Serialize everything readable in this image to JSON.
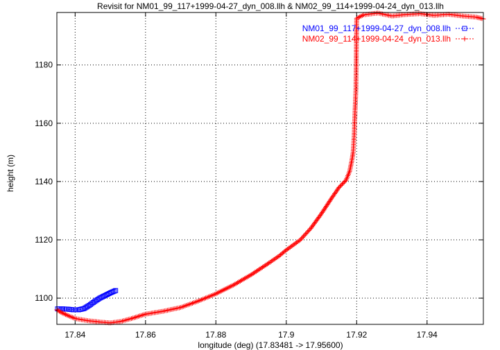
{
  "chart_data": {
    "type": "line",
    "title": "Revisit for NM01_99_117+1999-04-27_dyn_008.llh & NM02_99_114+1999-04-24_dyn_013.llh",
    "xlabel": "longitude (deg) (17.83481 -> 17.95600)",
    "ylabel": "height (m)",
    "xlim": [
      17.83481,
      17.956
    ],
    "ylim": [
      1091,
      1198
    ],
    "xticks": [
      17.84,
      17.86,
      17.88,
      17.9,
      17.92,
      17.94
    ],
    "xtick_labels": [
      "17.84",
      "17.86",
      "17.88",
      "17.9",
      "17.92",
      "17.94"
    ],
    "yticks": [
      1100,
      1120,
      1140,
      1160,
      1180
    ],
    "ytick_labels": [
      "1100",
      "1120",
      "1140",
      "1160",
      "1180"
    ],
    "grid": true,
    "legend_position": "top-right",
    "series": [
      {
        "name": "NM01_99_117+1999-04-27_dyn_008.llh",
        "color": "#0000ff",
        "marker": "square",
        "line": "dashed",
        "x": [
          17.835,
          17.8365,
          17.838,
          17.8395,
          17.841,
          17.8425,
          17.844,
          17.8455,
          17.847,
          17.8485,
          17.85,
          17.8515
        ],
        "y": [
          1096.3,
          1096.3,
          1096.2,
          1096.0,
          1096.0,
          1096.4,
          1097.5,
          1098.8,
          1100.0,
          1100.9,
          1101.8,
          1102.6
        ]
      },
      {
        "name": "NM02_99_114+1999-04-24_dyn_013.llh",
        "color": "#ff0000",
        "marker": "plus",
        "line": "dashed",
        "x": [
          17.8348,
          17.8362,
          17.838,
          17.84,
          17.844,
          17.847,
          17.85,
          17.853,
          17.856,
          17.86,
          17.865,
          17.87,
          17.875,
          17.88,
          17.885,
          17.89,
          17.895,
          17.898,
          17.9,
          17.904,
          17.907,
          17.91,
          17.913,
          17.915,
          17.917,
          17.918,
          17.9186,
          17.919,
          17.9193,
          17.9195,
          17.9198,
          17.92,
          17.922,
          17.926,
          17.93,
          17.934,
          17.938,
          17.942,
          17.946,
          17.95,
          17.954,
          17.956
        ],
        "y": [
          1096.0,
          1095.0,
          1094.0,
          1093.0,
          1092.2,
          1091.8,
          1091.5,
          1092.0,
          1093.0,
          1094.5,
          1095.5,
          1096.8,
          1099.0,
          1101.5,
          1104.5,
          1108.0,
          1112.0,
          1114.5,
          1116.5,
          1120.0,
          1124.0,
          1129.0,
          1134.5,
          1138.0,
          1140.5,
          1143.5,
          1147.0,
          1150.0,
          1156.0,
          1163.0,
          1172.0,
          1196.0,
          1197.2,
          1197.8,
          1196.8,
          1197.3,
          1197.6,
          1197.0,
          1197.4,
          1196.8,
          1196.4,
          1195.8
        ]
      }
    ]
  }
}
